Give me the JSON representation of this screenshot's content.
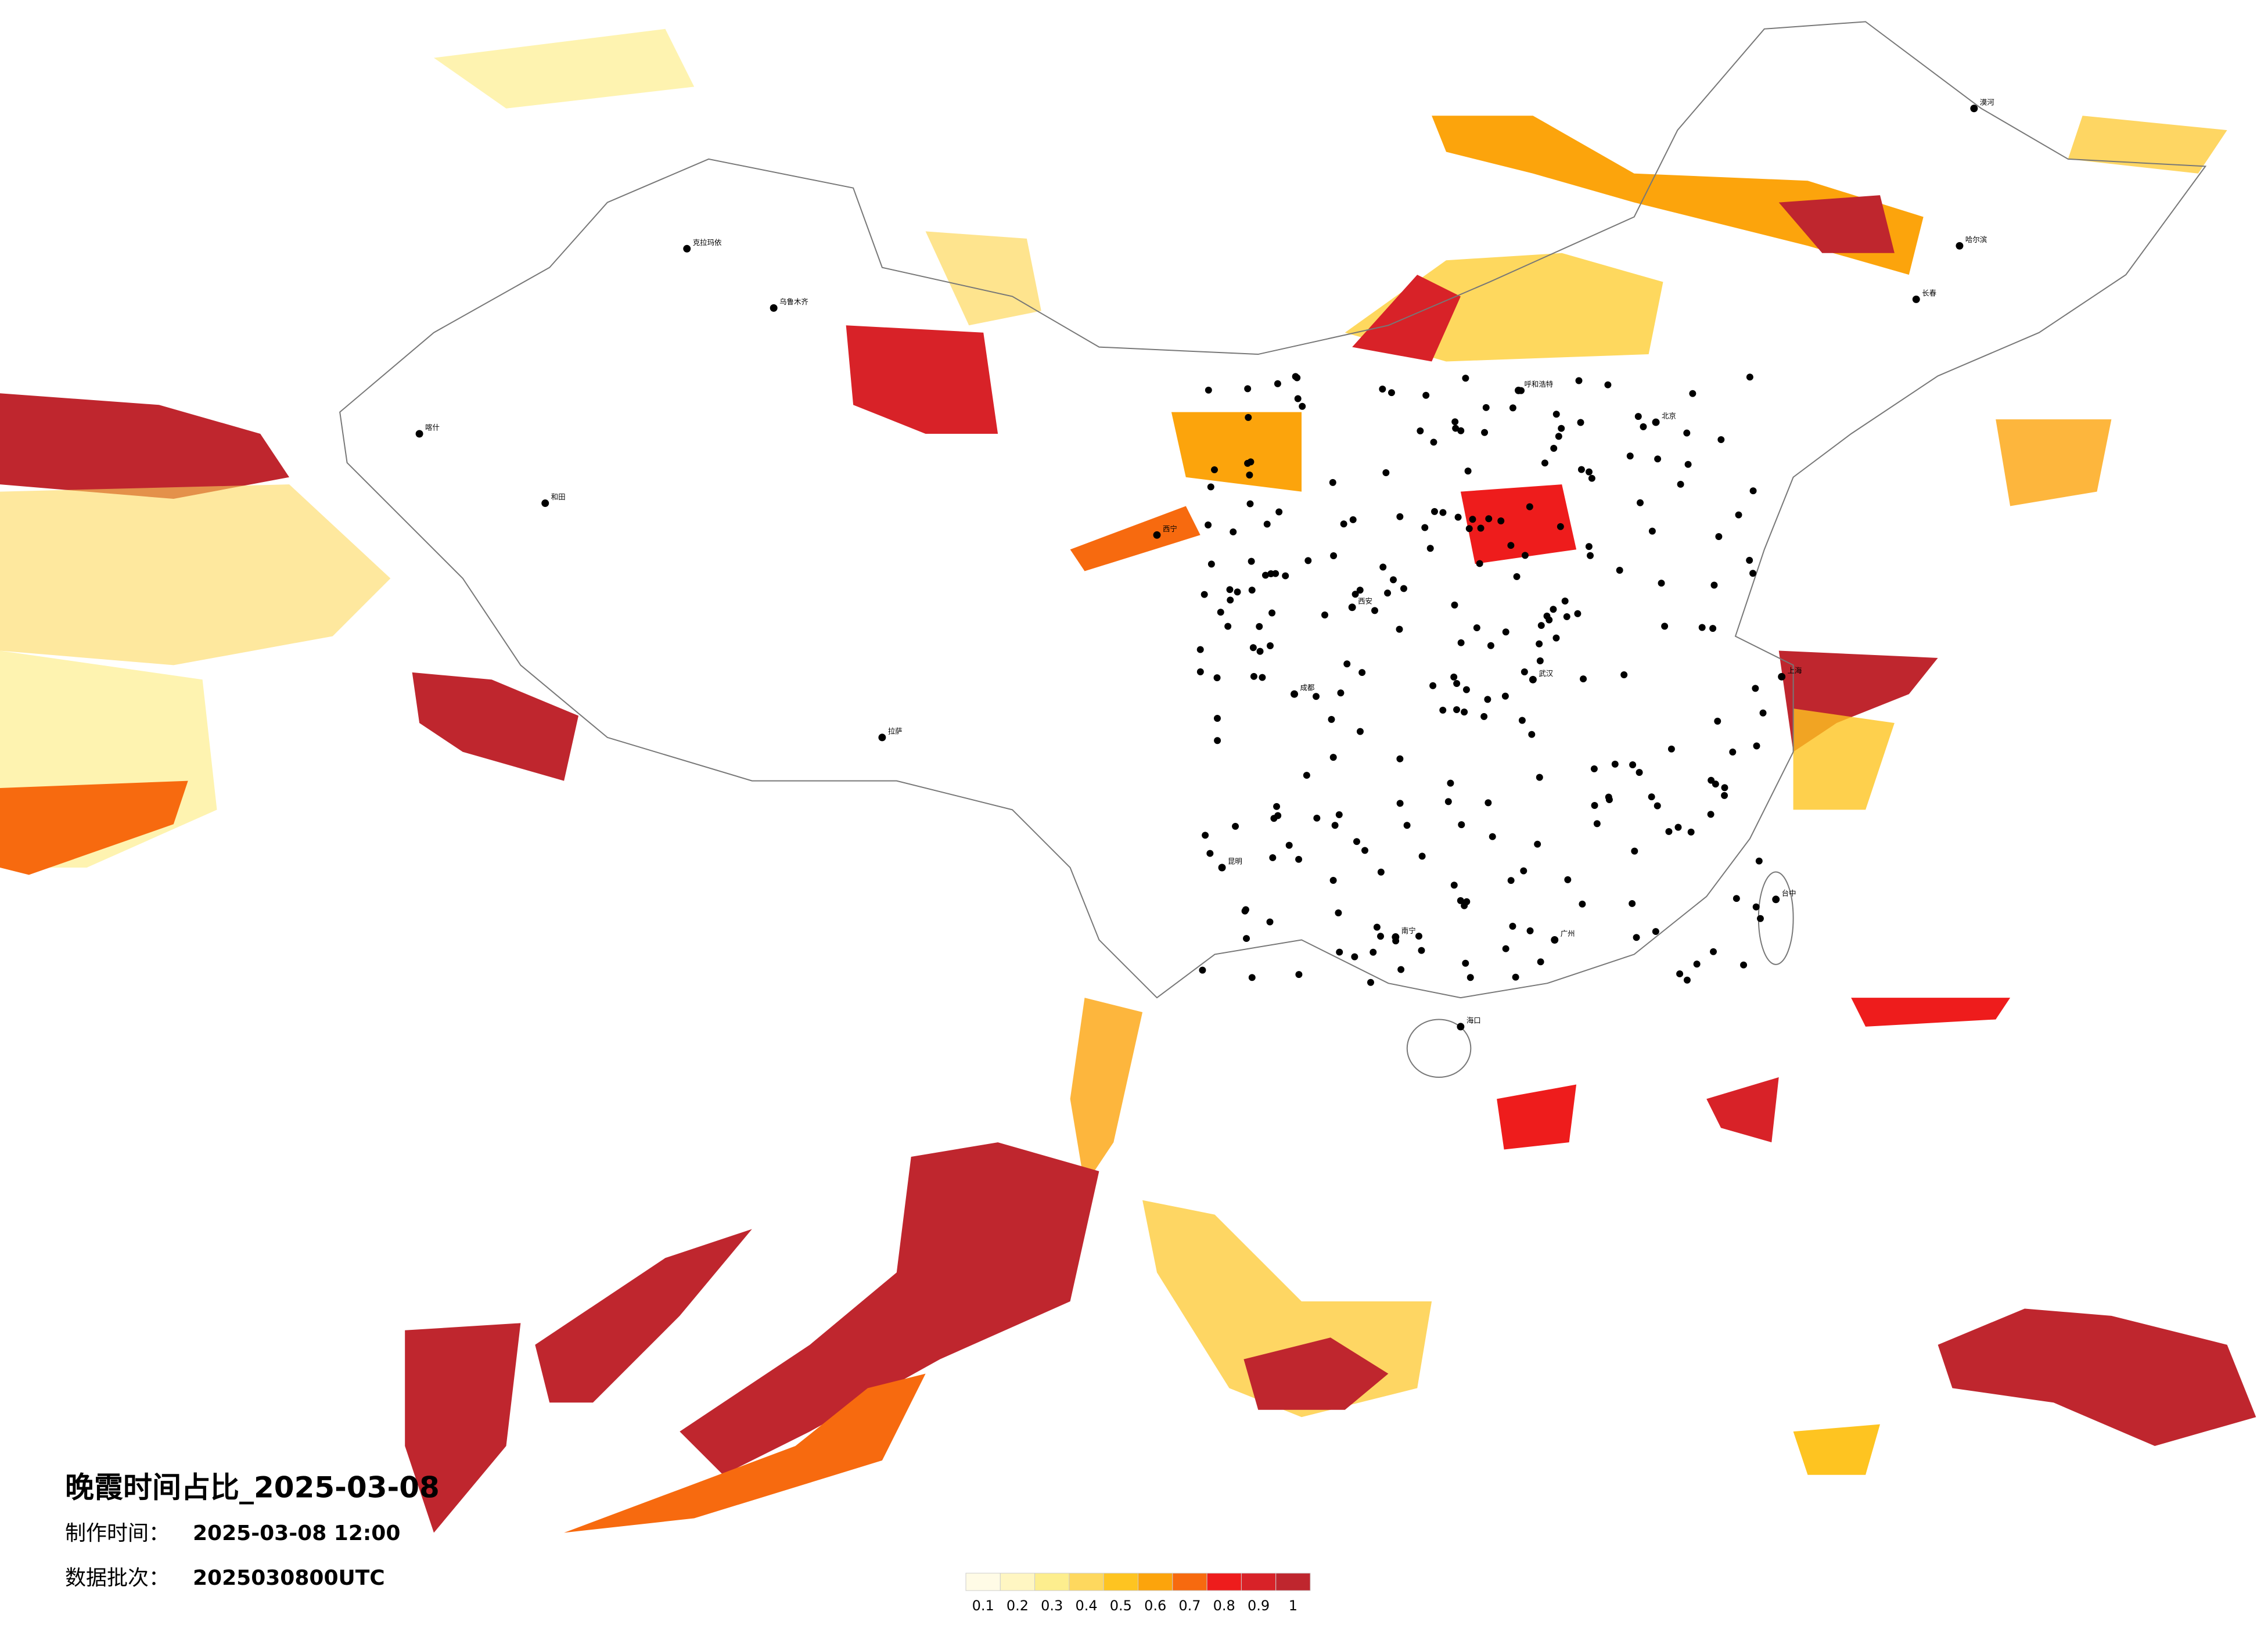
{
  "title": "晚霞时间占比_2025-03-08",
  "info": [
    {
      "label": "制作时间：",
      "value": "2025-03-08 12:00"
    },
    {
      "label": "数据批次：",
      "value": "2025030800UTC"
    }
  ],
  "legend": {
    "colors": [
      "#fffbe6",
      "#fff6c2",
      "#fdee8e",
      "#fed85e",
      "#fec421",
      "#fca40c",
      "#f76a0f",
      "#ee1c1c",
      "#d82228",
      "#bf262e"
    ],
    "ticks": [
      0.1,
      0.2,
      0.3,
      0.4,
      0.5,
      0.6,
      0.7,
      0.8,
      0.9,
      1
    ]
  },
  "cities": [
    "北京",
    "上海",
    "广州",
    "乌鲁木齐",
    "拉萨",
    "成都",
    "西安",
    "武汉",
    "哈尔滨",
    "昆明",
    "台中",
    "海口",
    "克拉玛依",
    "和田",
    "呼和浩特",
    "南宁",
    "长春",
    "漠河",
    "喀什",
    "西宁"
  ]
}
